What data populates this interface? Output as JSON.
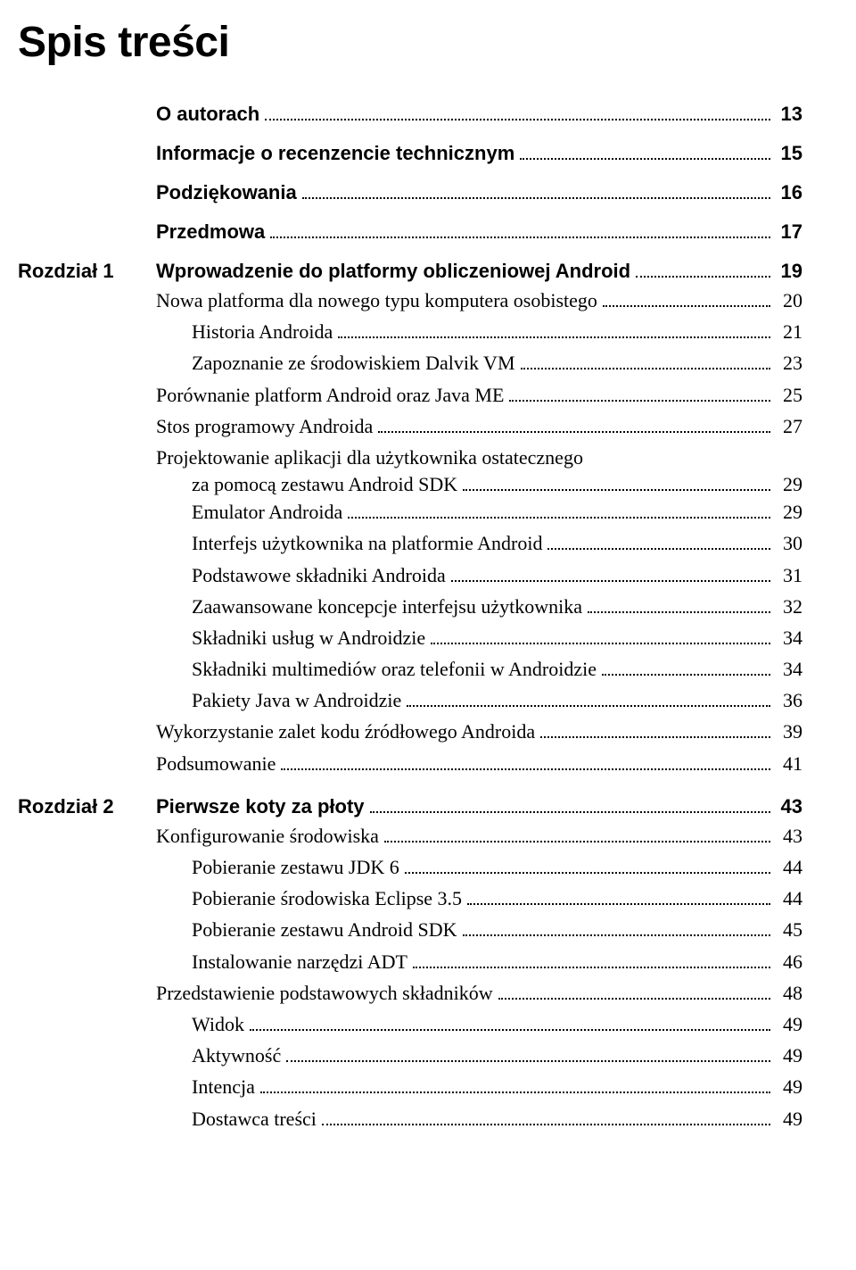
{
  "title": "Spis treści",
  "entries": [
    {
      "type": "bold",
      "chapterLabel": "",
      "text": "O autorach",
      "page": "13",
      "indent": 0
    },
    {
      "type": "bold",
      "chapterLabel": "",
      "text": "Informacje o recenzencie technicznym",
      "page": "15",
      "indent": 0
    },
    {
      "type": "bold",
      "chapterLabel": "",
      "text": "Podziękowania",
      "page": "16",
      "indent": 0
    },
    {
      "type": "bold",
      "chapterLabel": "",
      "text": "Przedmowa",
      "page": "17",
      "indent": 0
    },
    {
      "type": "bold",
      "chapterLabel": "Rozdział 1",
      "text": "Wprowadzenie do platformy obliczeniowej Android",
      "page": "19",
      "indent": 0
    },
    {
      "type": "body",
      "text": "Nowa platforma dla nowego typu komputera osobistego",
      "page": "20",
      "indent": 0
    },
    {
      "type": "body",
      "text": "Historia Androida",
      "page": "21",
      "indent": 1
    },
    {
      "type": "body",
      "text": "Zapoznanie ze środowiskiem Dalvik VM",
      "page": "23",
      "indent": 1
    },
    {
      "type": "body",
      "text": "Porównanie platform Android oraz Java ME",
      "page": "25",
      "indent": 0
    },
    {
      "type": "body",
      "text": "Stos programowy Androida",
      "page": "27",
      "indent": 0
    },
    {
      "type": "body2line",
      "text1": "Projektowanie aplikacji dla użytkownika ostatecznego",
      "text2": "za pomocą zestawu Android SDK",
      "page": "29",
      "indent": 0
    },
    {
      "type": "body",
      "text": "Emulator Androida",
      "page": "29",
      "indent": 1
    },
    {
      "type": "body",
      "text": "Interfejs użytkownika na platformie Android",
      "page": "30",
      "indent": 1
    },
    {
      "type": "body",
      "text": "Podstawowe składniki Androida",
      "page": "31",
      "indent": 1
    },
    {
      "type": "body",
      "text": "Zaawansowane koncepcje interfejsu użytkownika",
      "page": "32",
      "indent": 1
    },
    {
      "type": "body",
      "text": "Składniki usług w Androidzie",
      "page": "34",
      "indent": 1
    },
    {
      "type": "body",
      "text": "Składniki multimediów oraz telefonii w Androidzie",
      "page": "34",
      "indent": 1
    },
    {
      "type": "body",
      "text": "Pakiety Java w Androidzie",
      "page": "36",
      "indent": 1
    },
    {
      "type": "body",
      "text": "Wykorzystanie zalet kodu źródłowego Androida",
      "page": "39",
      "indent": 0
    },
    {
      "type": "body",
      "text": "Podsumowanie",
      "page": "41",
      "indent": 0
    },
    {
      "type": "bold",
      "chapterLabel": "Rozdział 2",
      "text": "Pierwsze koty za płoty",
      "page": "43",
      "indent": 0
    },
    {
      "type": "body",
      "text": "Konfigurowanie środowiska",
      "page": "43",
      "indent": 0
    },
    {
      "type": "body",
      "text": "Pobieranie zestawu JDK 6",
      "page": "44",
      "indent": 1
    },
    {
      "type": "body",
      "text": "Pobieranie środowiska Eclipse 3.5",
      "page": "44",
      "indent": 1
    },
    {
      "type": "body",
      "text": "Pobieranie zestawu Android SDK",
      "page": "45",
      "indent": 1
    },
    {
      "type": "body",
      "text": "Instalowanie narzędzi ADT",
      "page": "46",
      "indent": 1
    },
    {
      "type": "body",
      "text": "Przedstawienie podstawowych składników",
      "page": "48",
      "indent": 0
    },
    {
      "type": "body",
      "text": "Widok",
      "page": "49",
      "indent": 1
    },
    {
      "type": "body",
      "text": "Aktywność",
      "page": "49",
      "indent": 1
    },
    {
      "type": "body",
      "text": "Intencja",
      "page": "49",
      "indent": 1
    },
    {
      "type": "body",
      "text": "Dostawca treści",
      "page": "49",
      "indent": 1
    }
  ]
}
